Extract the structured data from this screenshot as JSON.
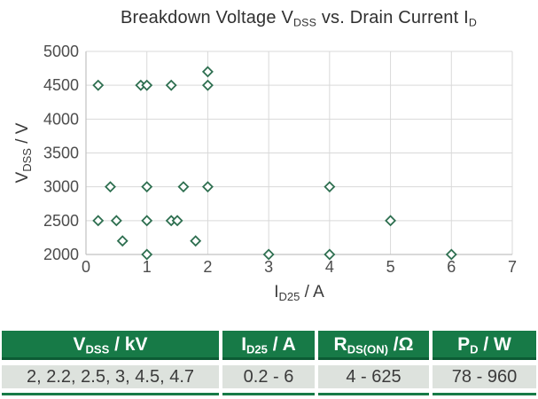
{
  "page": {
    "background": "#ffffff"
  },
  "title": {
    "t1": "Breakdown Voltage V",
    "s1": "DSS",
    "t2": " vs. Drain Current I",
    "s2": "D"
  },
  "chart_data": {
    "type": "scatter",
    "title": "Breakdown Voltage V_DSS vs. Drain Current I_D",
    "xlabel": {
      "main": "I",
      "sub": "D25",
      "tail": " / A"
    },
    "ylabel": {
      "main": "V",
      "sub": "DSS",
      "tail": " / V"
    },
    "xlim": [
      0,
      7
    ],
    "ylim": [
      2000,
      5000
    ],
    "x_ticks": [
      0,
      1,
      2,
      3,
      4,
      5,
      6,
      7
    ],
    "y_ticks": [
      2000,
      2500,
      3000,
      3500,
      4000,
      4500,
      5000
    ],
    "grid": true,
    "legend": "none",
    "marker": "hollow-diamond",
    "colors": {
      "marker": "#2e6f50",
      "grid": "#d9d9d9",
      "axis": "#c2c2c2",
      "tick_text": "#4c4c4c",
      "label_text": "#3a3a3a"
    },
    "points": [
      {
        "x": 2,
        "y": 4700
      },
      {
        "x": 0.2,
        "y": 4500
      },
      {
        "x": 0.9,
        "y": 4500
      },
      {
        "x": 1,
        "y": 4500
      },
      {
        "x": 1.4,
        "y": 4500
      },
      {
        "x": 2,
        "y": 4500
      },
      {
        "x": 0.4,
        "y": 3000
      },
      {
        "x": 1,
        "y": 3000
      },
      {
        "x": 1.6,
        "y": 3000
      },
      {
        "x": 2,
        "y": 3000
      },
      {
        "x": 4,
        "y": 3000
      },
      {
        "x": 0.2,
        "y": 2500
      },
      {
        "x": 0.5,
        "y": 2500
      },
      {
        "x": 1,
        "y": 2500
      },
      {
        "x": 1.4,
        "y": 2500
      },
      {
        "x": 1.5,
        "y": 2500
      },
      {
        "x": 5,
        "y": 2500
      },
      {
        "x": 0.6,
        "y": 2200
      },
      {
        "x": 1.8,
        "y": 2200
      },
      {
        "x": 1,
        "y": 2000
      },
      {
        "x": 3,
        "y": 2000
      },
      {
        "x": 4,
        "y": 2000
      },
      {
        "x": 6,
        "y": 2000
      }
    ]
  },
  "table": {
    "accent_green": "#177a47",
    "header_border_green": "#0c5c34",
    "row_background": "#dde2dd",
    "headers": [
      {
        "main": "V",
        "sub": "DSS",
        "tail": " / kV"
      },
      {
        "main": "I",
        "sub": "D25",
        "tail": " / A"
      },
      {
        "main": "R",
        "sub": "DS(ON)",
        "tail": " /Ω"
      },
      {
        "main": "P",
        "sub": "D",
        "tail": " / W"
      }
    ],
    "row": [
      "2, 2.2, 2.5, 3, 4.5, 4.7",
      "0.2 - 6",
      "4 - 625",
      "78 - 960"
    ]
  }
}
